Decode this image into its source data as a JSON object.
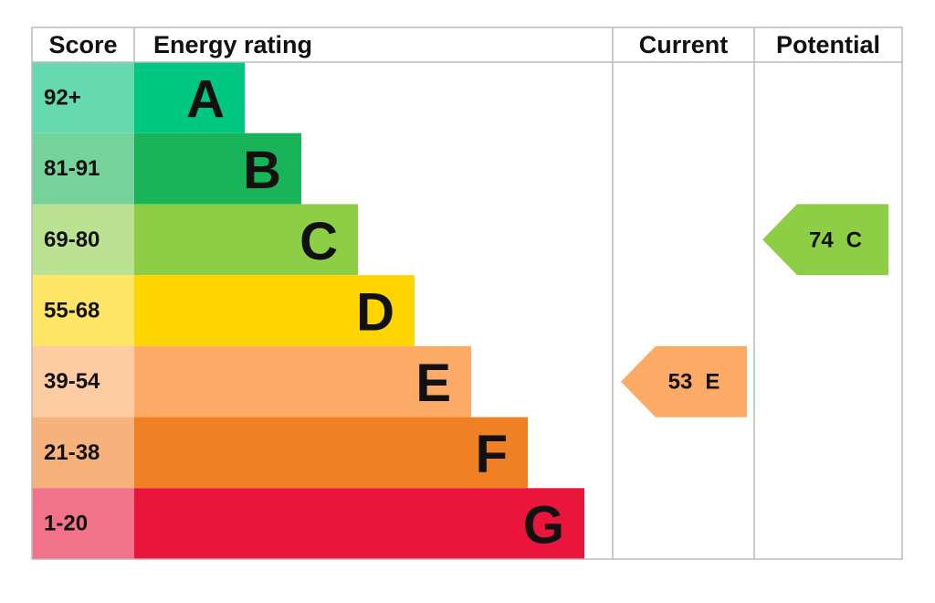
{
  "headers": {
    "score": "Score",
    "rating": "Energy rating",
    "current": "Current",
    "potential": "Potential"
  },
  "bands": [
    {
      "score": "92+",
      "letter": "A",
      "color": "#00c781",
      "score_color": "#66d9b0"
    },
    {
      "score": "81-91",
      "letter": "B",
      "color": "#19b459",
      "score_color": "#75d29b"
    },
    {
      "score": "69-80",
      "letter": "C",
      "color": "#8dce46",
      "score_color": "#bbe291"
    },
    {
      "score": "55-68",
      "letter": "D",
      "color": "#ffd500",
      "score_color": "#ffe666"
    },
    {
      "score": "39-54",
      "letter": "E",
      "color": "#fcaa65",
      "score_color": "#fdcca3"
    },
    {
      "score": "21-38",
      "letter": "F",
      "color": "#ef8023",
      "score_color": "#f5b37b"
    },
    {
      "score": "1-20",
      "letter": "G",
      "color": "#e9153b",
      "score_color": "#f27389"
    }
  ],
  "current": {
    "value": 53,
    "letter": "E"
  },
  "potential": {
    "value": 74,
    "letter": "C"
  }
}
